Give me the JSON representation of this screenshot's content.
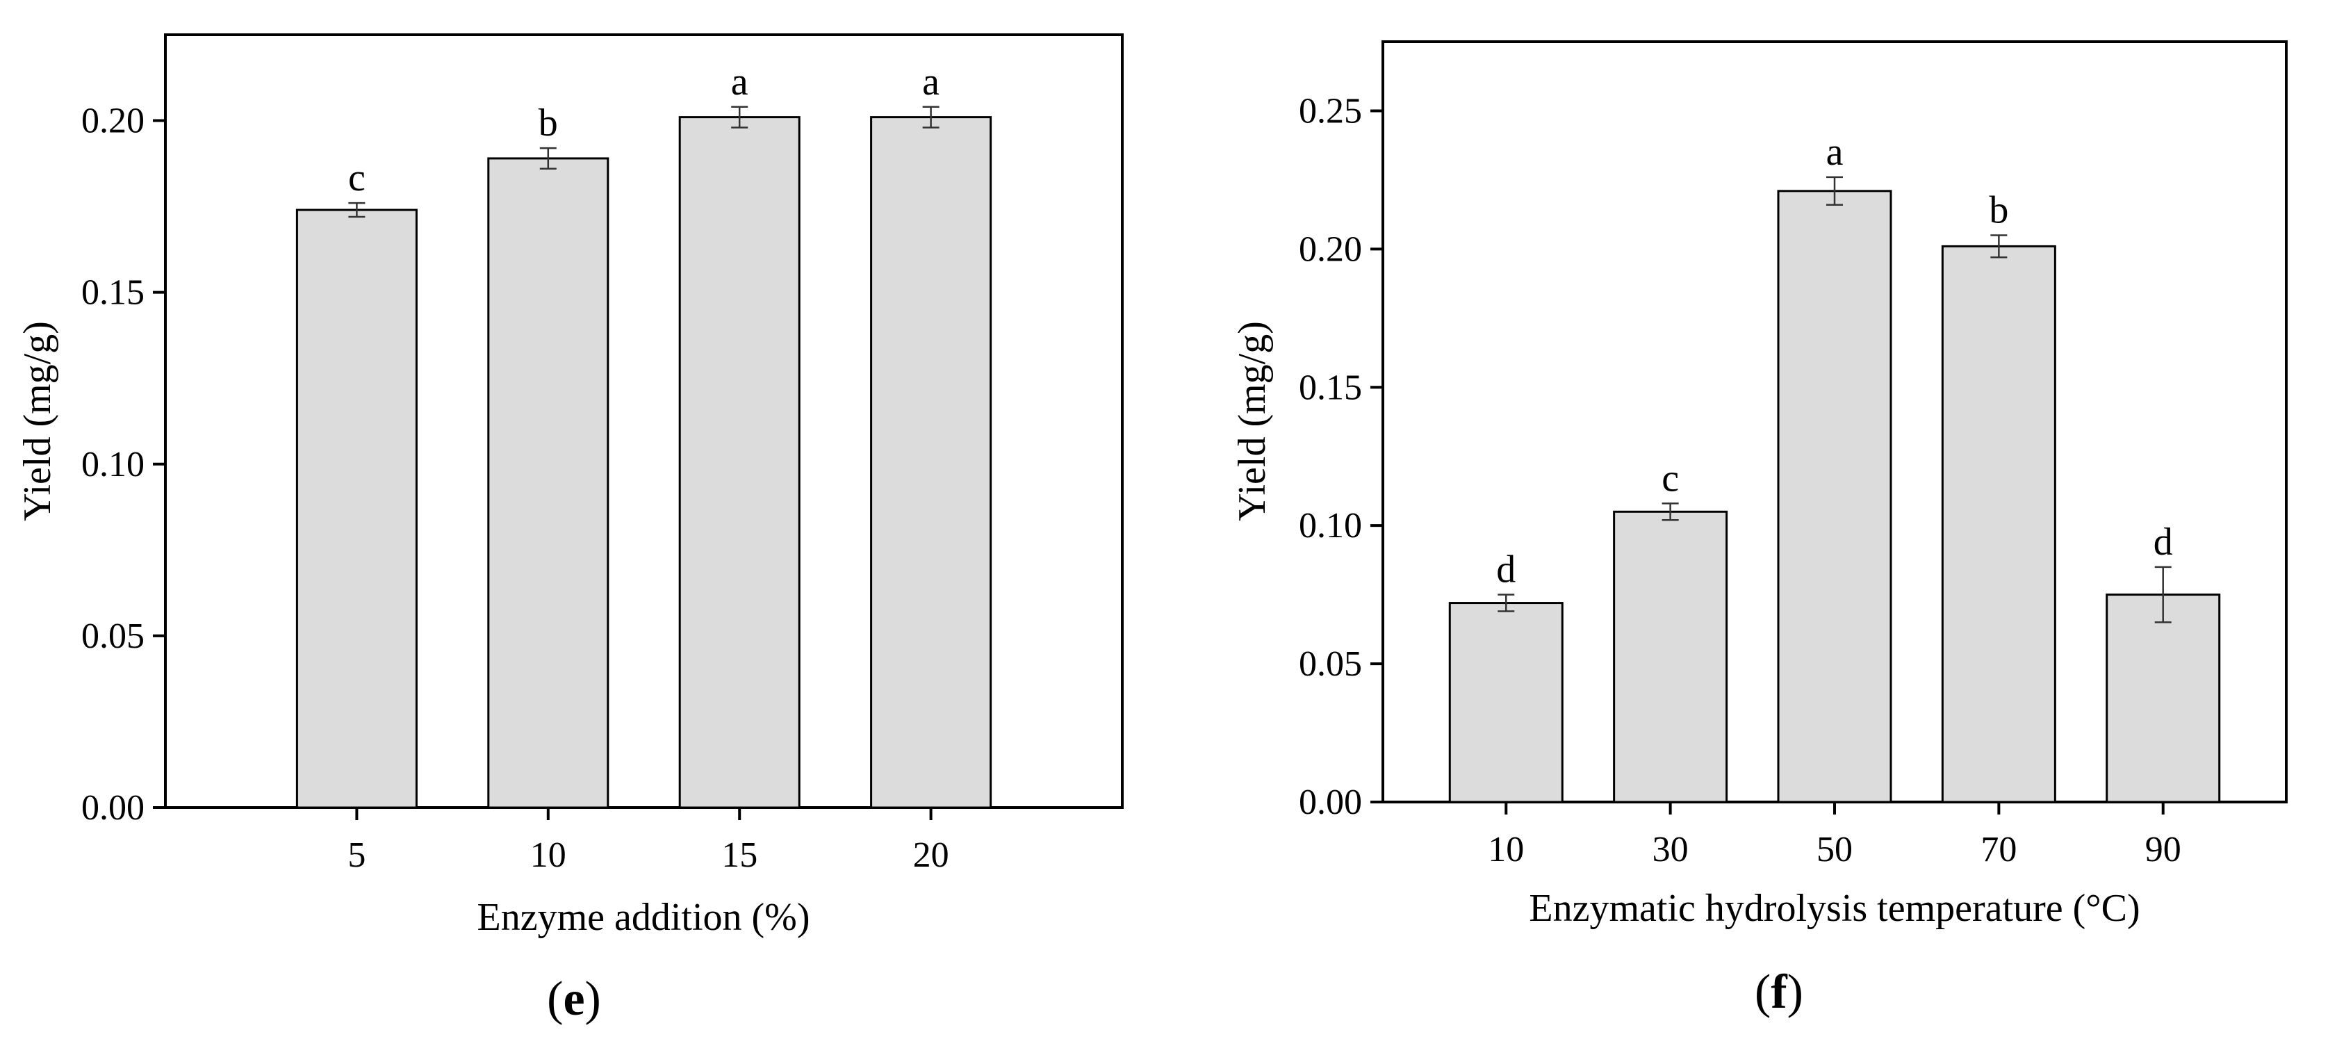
{
  "chart_data": [
    {
      "type": "bar",
      "panel_label": "e",
      "xlabel": "Enzyme addition (%)",
      "ylabel": "Yield (mg/g)",
      "categories": [
        "5",
        "10",
        "15",
        "20"
      ],
      "values": [
        0.174,
        0.189,
        0.201,
        0.201
      ],
      "errors": [
        0.002,
        0.003,
        0.003,
        0.003
      ],
      "significance": [
        "c",
        "b",
        "a",
        "a"
      ],
      "ylim": [
        0,
        0.225
      ],
      "yticks": [
        "0.00",
        "0.05",
        "0.10",
        "0.15",
        "0.20"
      ],
      "bar_color": "#dcdcdc",
      "grid": false
    },
    {
      "type": "bar",
      "panel_label": "f",
      "xlabel": "Enzymatic hydrolysis temperature (°C)",
      "ylabel": "Yield (mg/g)",
      "categories": [
        "10",
        "30",
        "50",
        "70",
        "90"
      ],
      "values": [
        0.072,
        0.105,
        0.221,
        0.201,
        0.075
      ],
      "errors": [
        0.003,
        0.003,
        0.005,
        0.004,
        0.01
      ],
      "significance": [
        "d",
        "c",
        "a",
        "b",
        "d"
      ],
      "ylim": [
        0,
        0.275
      ],
      "yticks": [
        "0.00",
        "0.05",
        "0.10",
        "0.15",
        "0.20",
        "0.25"
      ],
      "bar_color": "#dcdcdc",
      "grid": false
    }
  ]
}
